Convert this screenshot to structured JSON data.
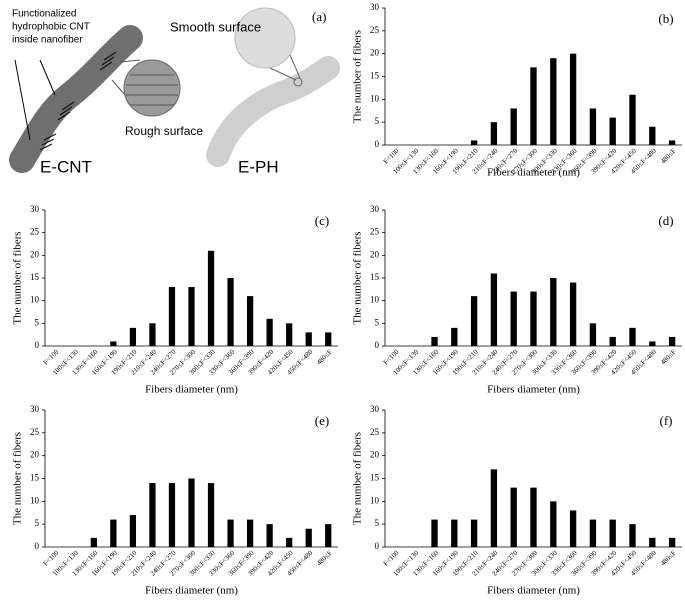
{
  "illustration": {
    "panel": "(a)",
    "cnt_note": [
      "Functionalized",
      "hydrophobic CNT",
      "inside nanofiber"
    ],
    "smooth": "Smooth surface",
    "rough": "Rough surface",
    "left_name": "E-CNT",
    "right_name": "E-PH"
  },
  "chart_data": [
    {
      "type": "bar",
      "label": "(b)",
      "ylabel": "The number of fibers",
      "xlabel": "Fibers diameter (nm)",
      "color": "#000000",
      "categories": [
        "F<100",
        "100≤F<130",
        "130≤F<160",
        "160≤F<190",
        "190≤F<210",
        "210≤F<240",
        "240≤F<270",
        "270≤F<300",
        "300≤F<330",
        "330≤F<360",
        "360≤F<390",
        "390≤F<420",
        "420≤F<450",
        "450≤F<480",
        "480≤F"
      ],
      "values": [
        0,
        0,
        0,
        0,
        1,
        5,
        8,
        17,
        19,
        20,
        8,
        6,
        11,
        4,
        1
      ],
      "ylim": [
        0,
        30
      ],
      "yticks": [
        0,
        5,
        10,
        15,
        20,
        25,
        30
      ]
    },
    {
      "type": "bar",
      "label": "(c)",
      "ylabel": "The number of fibers",
      "xlabel": "Fibers diameter (nm)",
      "color": "#000000",
      "categories": [
        "F<100",
        "100≤F<130",
        "130≤F<160",
        "160≤F<190",
        "190≤F<210",
        "210≤F<240",
        "240≤F<270",
        "270≤F<300",
        "300≤F<330",
        "330≤F<360",
        "360≤F<390",
        "390≤F<420",
        "420≤F<450",
        "450≤F<480",
        "480≤F"
      ],
      "values": [
        0,
        0,
        0,
        1,
        4,
        5,
        13,
        13,
        21,
        15,
        11,
        6,
        5,
        3,
        3
      ],
      "ylim": [
        0,
        30
      ],
      "yticks": [
        0,
        5,
        10,
        15,
        20,
        25,
        30
      ]
    },
    {
      "type": "bar",
      "label": "(d)",
      "ylabel": "The number of fibers",
      "xlabel": "Fibers diameter (nm)",
      "color": "#000000",
      "categories": [
        "F<100",
        "100≤F<130",
        "130≤F<160",
        "160≤F<190",
        "190≤F<210",
        "210≤F<240",
        "240≤F<270",
        "270≤F<300",
        "300≤F<330",
        "330≤F<360",
        "360≤F<390",
        "390≤F<420",
        "420≤F<450",
        "450≤F<480",
        "480≤F"
      ],
      "values": [
        0,
        0,
        2,
        4,
        11,
        16,
        12,
        12,
        15,
        14,
        5,
        2,
        4,
        1,
        2
      ],
      "ylim": [
        0,
        30
      ],
      "yticks": [
        0,
        5,
        10,
        15,
        20,
        25,
        30
      ]
    },
    {
      "type": "bar",
      "label": "(e)",
      "ylabel": "The number of fibers",
      "xlabel": "Fibers diameter (nm)",
      "color": "#000000",
      "categories": [
        "F<100",
        "100≤F<130",
        "130≤F<160",
        "160≤F<190",
        "190≤F<210",
        "210≤F<240",
        "240≤F<270",
        "270≤F<300",
        "300≤F<330",
        "330≤F<360",
        "360≤F<390",
        "390≤F<420",
        "420≤F<450",
        "450≤F<480",
        "480≤F"
      ],
      "values": [
        0,
        0,
        2,
        6,
        7,
        14,
        14,
        15,
        14,
        6,
        6,
        5,
        2,
        4,
        5
      ],
      "ylim": [
        0,
        30
      ],
      "yticks": [
        0,
        5,
        10,
        15,
        20,
        25,
        30
      ]
    },
    {
      "type": "bar",
      "label": "(f)",
      "ylabel": "The number of fibers",
      "xlabel": "Fibers diameter (nm)",
      "color": "#000000",
      "categories": [
        "F<100",
        "100≤F<130",
        "130≤F<160",
        "160≤F<190",
        "190≤F<210",
        "210≤F<240",
        "240≤F<270",
        "270≤F<300",
        "300≤F<330",
        "330≤F<360",
        "360≤F<390",
        "390≤F<420",
        "420≤F<450",
        "450≤F<480",
        "480≤F"
      ],
      "values": [
        0,
        0,
        6,
        6,
        6,
        17,
        13,
        13,
        10,
        8,
        6,
        6,
        5,
        2,
        2
      ],
      "ylim": [
        0,
        30
      ],
      "yticks": [
        0,
        5,
        10,
        15,
        20,
        25,
        30
      ]
    }
  ]
}
